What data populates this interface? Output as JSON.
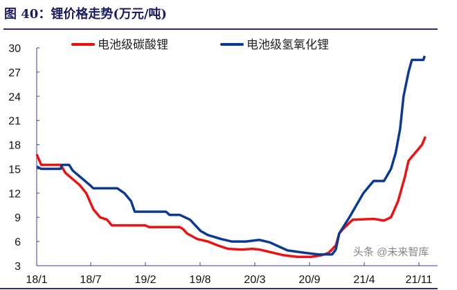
{
  "chart_data": {
    "type": "line",
    "title": "图 40：锂价格走势(万元/吨)",
    "xlabel": "",
    "ylabel": "",
    "ylim": [
      3,
      30
    ],
    "yticks": [
      3,
      6,
      9,
      12,
      15,
      18,
      21,
      24,
      27,
      30
    ],
    "xticks": [
      "18/1",
      "18/7",
      "19/2",
      "19/8",
      "20/3",
      "20/9",
      "21/4",
      "21/11"
    ],
    "grid": false,
    "legend": "top",
    "series": [
      {
        "name": "电池级碳酸锂",
        "color": "#ee1111",
        "points": [
          [
            "2018-01-01",
            16.8
          ],
          [
            "2018-01-16",
            15.5
          ],
          [
            "2018-03-21",
            15.5
          ],
          [
            "2018-04-07",
            14.5
          ],
          [
            "2018-05-24",
            13.0
          ],
          [
            "2018-06-16",
            12.0
          ],
          [
            "2018-07-11",
            10.0
          ],
          [
            "2018-08-07",
            9.0
          ],
          [
            "2018-09-04",
            8.7
          ],
          [
            "2018-09-22",
            8.0
          ],
          [
            "2019-02-01",
            8.0
          ],
          [
            "2019-02-12",
            7.8
          ],
          [
            "2019-05-24",
            7.8
          ],
          [
            "2019-06-06",
            7.5
          ],
          [
            "2019-06-18",
            7.0
          ],
          [
            "2019-07-22",
            6.3
          ],
          [
            "2019-09-01",
            6.0
          ],
          [
            "2019-10-10",
            5.5
          ],
          [
            "2019-11-18",
            5.1
          ],
          [
            "2020-01-12",
            5.0
          ],
          [
            "2020-02-22",
            5.1
          ],
          [
            "2020-03-16",
            5.0
          ],
          [
            "2020-04-20",
            4.7
          ],
          [
            "2020-06-06",
            4.3
          ],
          [
            "2020-07-22",
            4.1
          ],
          [
            "2020-09-08",
            4.1
          ],
          [
            "2020-10-18",
            4.3
          ],
          [
            "2020-11-15",
            4.6
          ],
          [
            "2020-12-12",
            5.5
          ],
          [
            "2020-12-25",
            7.0
          ],
          [
            "2021-01-08",
            7.5
          ],
          [
            "2021-02-17",
            8.7
          ],
          [
            "2021-05-07",
            8.8
          ],
          [
            "2021-06-17",
            8.6
          ],
          [
            "2021-07-14",
            9.0
          ],
          [
            "2021-08-11",
            11.0
          ],
          [
            "2021-09-07",
            14.0
          ],
          [
            "2021-09-21",
            16.0
          ],
          [
            "2021-10-17",
            17.0
          ],
          [
            "2021-11-13",
            18.0
          ],
          [
            "2021-11-26",
            19.0
          ]
        ]
      },
      {
        "name": "电池级氢氧化锂",
        "color": "#0a3a94",
        "points": [
          [
            "2018-01-01",
            15.3
          ],
          [
            "2018-01-16",
            15.0
          ],
          [
            "2018-03-21",
            15.0
          ],
          [
            "2018-03-25",
            15.5
          ],
          [
            "2018-04-19",
            15.5
          ],
          [
            "2018-05-01",
            14.8
          ],
          [
            "2018-06-28",
            13.0
          ],
          [
            "2018-07-11",
            12.6
          ],
          [
            "2018-10-13",
            12.6
          ],
          [
            "2018-11-10",
            12.0
          ],
          [
            "2018-12-06",
            11.0
          ],
          [
            "2018-12-20",
            9.7
          ],
          [
            "2019-04-09",
            9.7
          ],
          [
            "2019-04-20",
            9.3
          ],
          [
            "2019-05-24",
            9.3
          ],
          [
            "2019-06-28",
            8.7
          ],
          [
            "2019-08-03",
            7.3
          ],
          [
            "2019-09-01",
            6.8
          ],
          [
            "2019-10-22",
            6.3
          ],
          [
            "2019-12-02",
            6.0
          ],
          [
            "2020-01-26",
            6.0
          ],
          [
            "2020-03-16",
            6.2
          ],
          [
            "2020-04-20",
            5.9
          ],
          [
            "2020-05-13",
            5.5
          ],
          [
            "2020-06-18",
            4.9
          ],
          [
            "2020-08-15",
            4.6
          ],
          [
            "2020-10-05",
            4.4
          ],
          [
            "2020-11-28",
            4.4
          ],
          [
            "2020-12-12",
            5.0
          ],
          [
            "2020-12-25",
            7.0
          ],
          [
            "2021-02-04",
            9.0
          ],
          [
            "2021-03-01",
            10.5
          ],
          [
            "2021-03-28",
            12.0
          ],
          [
            "2021-05-07",
            13.5
          ],
          [
            "2021-06-17",
            13.5
          ],
          [
            "2021-07-14",
            15.0
          ],
          [
            "2021-08-02",
            17.0
          ],
          [
            "2021-08-19",
            20.0
          ],
          [
            "2021-09-02",
            24.0
          ],
          [
            "2021-09-21",
            27.0
          ],
          [
            "2021-10-04",
            28.5
          ],
          [
            "2021-11-18",
            28.5
          ],
          [
            "2021-11-23",
            29.0
          ]
        ]
      }
    ]
  },
  "watermark": "头条 @未来智库"
}
